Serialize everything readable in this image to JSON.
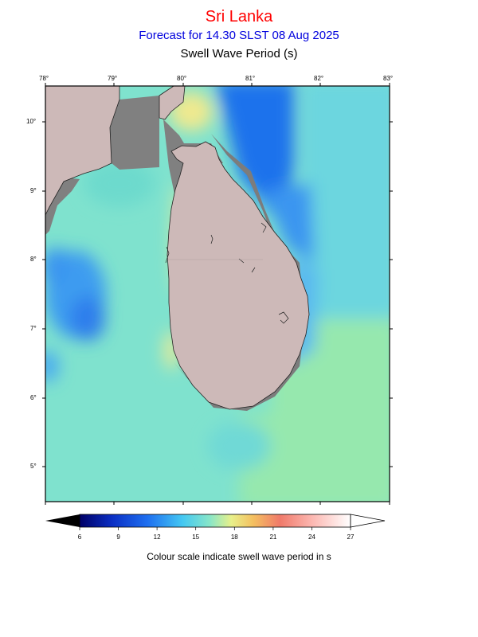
{
  "header": {
    "region": "Sri Lanka",
    "forecast": "Forecast for  14.30 SLST 08 Aug 2025",
    "variable": "Swell Wave Period (s)"
  },
  "map": {
    "lon_labels": [
      "78°",
      "79°",
      "80°",
      "81°",
      "82°",
      "83°"
    ],
    "lat_labels": [
      "10°",
      "9°",
      "8°",
      "7°",
      "6°",
      "5°"
    ]
  },
  "colorbar": {
    "tick_labels": [
      "6",
      "9",
      "12",
      "15",
      "18",
      "21",
      "24",
      "27"
    ],
    "caption": "Colour scale indicate swell wave period in s"
  }
}
